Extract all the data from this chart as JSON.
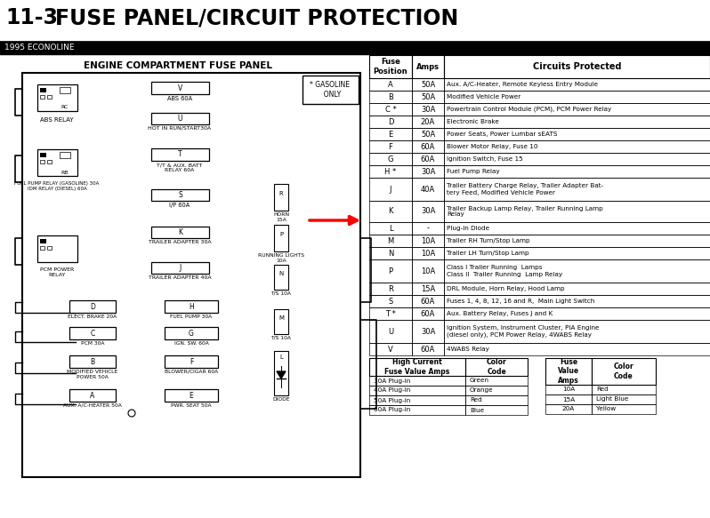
{
  "title": "11-3    FUSE PANEL/CIRCUIT PROTECTION",
  "subtitle": "1995 ECONOLINE",
  "panel_title": "ENGINE COMPARTMENT FUSE PANEL",
  "gasoline_note": "* GASOLINE\n  ONLY",
  "bg_color": "#ffffff",
  "table_headers": [
    "Fuse\nPosition",
    "Amps",
    "Circuits Protected"
  ],
  "table_rows": [
    [
      "A",
      "50A",
      "Aux. A/C-Heater, Remote Keyless Entry Module"
    ],
    [
      "B",
      "50A",
      "Modified Vehicle Power"
    ],
    [
      "C *",
      "30A",
      "Powertrain Control Module (PCM), PCM Power Relay"
    ],
    [
      "D",
      "20A",
      "Electronic Brake"
    ],
    [
      "E",
      "50A",
      "Power Seats, Power Lumbar sEATS"
    ],
    [
      "F",
      "60A",
      "Blower Motor Relay, Fuse 10"
    ],
    [
      "G",
      "60A",
      "Ignition Switch, Fuse 15"
    ],
    [
      "H *",
      "30A",
      "Fuel Pump Relay"
    ],
    [
      "J",
      "40A",
      "Trailer Battery Charge Relay, Trailer Adapter Bat-\ntery Feed, Modified Vehicle Power"
    ],
    [
      "K",
      "30A",
      "Trailer Backup Lamp Relay, Trailer Running Lamp\nRelay"
    ],
    [
      "L",
      "-",
      "Plug-in Diode"
    ],
    [
      "M",
      "10A",
      "Trailer RH Turn/Stop Lamp"
    ],
    [
      "N",
      "10A",
      "Trailer LH Turn/Stop Lamp"
    ],
    [
      "P",
      "10A",
      "Class I Trailer Running  Lamps\nClass II  Trailer Running  Lamp Relay"
    ],
    [
      "R",
      "15A",
      "DRL Module, Horn Relay, Hood Lamp"
    ],
    [
      "S",
      "60A",
      "Fuses 1, 4, 8, 12, 16 and R,  Main Light Switch"
    ],
    [
      "T *",
      "60A",
      "Aux. Battery Relay, Fuses J and K"
    ],
    [
      "U",
      "30A",
      "Ignition System, Instrument Cluster, PIA Engine\n(diesel only), PCM Power Relay, 4WABS Relay"
    ],
    [
      "V",
      "60A",
      "4WABS Relay"
    ]
  ],
  "bottom_table1_header": [
    "High Current\nFuse Value Amps",
    "Color\nCode"
  ],
  "bottom_table1_rows": [
    [
      "30A Plug-in",
      "Green"
    ],
    [
      "40A Plug-in",
      "Orange"
    ],
    [
      "50A Plug-in",
      "Red"
    ],
    [
      "60A Plug-in",
      "Blue"
    ]
  ],
  "bottom_table2_header": [
    "Fuse\nValue\nAmps",
    "Color\nCode"
  ],
  "bottom_table2_rows": [
    [
      "10A",
      "Red"
    ],
    [
      "15A",
      "Light Blue"
    ],
    [
      "20A",
      "Yellow"
    ]
  ]
}
